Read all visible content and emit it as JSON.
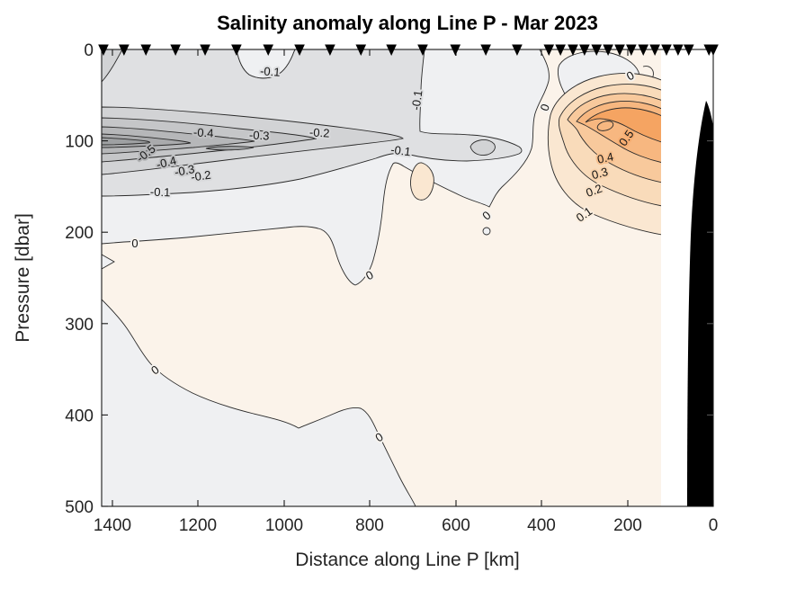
{
  "figure": {
    "title": "Salinity anomaly along Line P - Mar 2023",
    "background": "#ffffff"
  },
  "axes": {
    "x": {
      "label": "Distance along Line P [km]",
      "ticks": [
        "1400",
        "1200",
        "1000",
        "800",
        "600",
        "400",
        "200",
        "0"
      ],
      "direction": "reversed",
      "range_km": [
        1425,
        0
      ]
    },
    "y": {
      "label": "Pressure [dbar]",
      "ticks": [
        "0",
        "100",
        "200",
        "300",
        "400",
        "500"
      ],
      "direction": "increasing-downward",
      "range_dbar": [
        0,
        500
      ]
    }
  },
  "stations": {
    "marker": "filled-down-triangle-icon",
    "color": "#000000",
    "km": [
      1421,
      1373,
      1322,
      1253,
      1184,
      1111,
      1037,
      964,
      893,
      821,
      750,
      677,
      601,
      530,
      457,
      383,
      356,
      327,
      300,
      272,
      245,
      218,
      191,
      163,
      136,
      109,
      82,
      57,
      10,
      0
    ]
  },
  "contour_labels": [
    {
      "text": "-0.1",
      "km": 1033,
      "dbar": 25
    },
    {
      "text": "-0.1",
      "km": 681,
      "dbar": 56
    },
    {
      "text": "-0.1",
      "km": 729,
      "dbar": 111
    },
    {
      "text": "-0.4",
      "km": 1188,
      "dbar": 92
    },
    {
      "text": "-0.3",
      "km": 1058,
      "dbar": 94
    },
    {
      "text": "-0.2",
      "km": 918,
      "dbar": 92
    },
    {
      "text": "-0.5",
      "km": 1316,
      "dbar": 113
    },
    {
      "text": "-0.4",
      "km": 1272,
      "dbar": 124
    },
    {
      "text": "-0.3",
      "km": 1230,
      "dbar": 133
    },
    {
      "text": "-0.2",
      "km": 1197,
      "dbar": 139
    },
    {
      "text": "-0.1",
      "km": 1289,
      "dbar": 156
    },
    {
      "text": "0",
      "km": 1347,
      "dbar": 213
    },
    {
      "text": "0",
      "km": 796,
      "dbar": 247
    },
    {
      "text": "0",
      "km": 522,
      "dbar": 181
    },
    {
      "text": "0",
      "km": 1295,
      "dbar": 350
    },
    {
      "text": "0",
      "km": 773,
      "dbar": 424
    },
    {
      "text": "0",
      "km": 383,
      "dbar": 61
    },
    {
      "text": "0",
      "km": 189,
      "dbar": 29
    },
    {
      "text": "0.1",
      "km": 295,
      "dbar": 180
    },
    {
      "text": "0.2",
      "km": 274,
      "dbar": 155
    },
    {
      "text": "0.3",
      "km": 262,
      "dbar": 136
    },
    {
      "text": "0.4",
      "km": 249,
      "dbar": 119
    },
    {
      "text": "0.5",
      "km": 195,
      "dbar": 94
    }
  ],
  "colors": {
    "fill_below_-0.5": "#A9AAAC",
    "fill_-0.5_-0.4": "#B6B7B9",
    "fill_-0.4_-0.3": "#C5C6C8",
    "fill_-0.3_-0.2": "#D2D3D5",
    "fill_-0.2_-0.1": "#DFE0E2",
    "fill_-0.1_0": "#EFF0F2",
    "fill_0_0.1": "#FBF3EA",
    "fill_0.1_0.2": "#FAE7D1",
    "fill_0.2_0.3": "#F9DBBA",
    "fill_0.3_0.4": "#F8C99C",
    "fill_0.4_0.5": "#F7B780",
    "fill_above_0.5": "#F5A462",
    "contour_line": "#2b2b2b",
    "bathymetry": "#000000"
  },
  "chart_data": {
    "type": "contour",
    "title": "Salinity anomaly along Line P - Mar 2023",
    "xlabel": "Distance along Line P [km]",
    "ylabel": "Pressure [dbar]",
    "xlim": [
      1425,
      0
    ],
    "ylim": [
      0,
      500
    ],
    "contour_interval": 0.1,
    "labeled_levels": [
      -0.5,
      -0.4,
      -0.3,
      -0.2,
      -0.1,
      0,
      0.1,
      0.2,
      0.3,
      0.4,
      0.5
    ],
    "colormap": "gray (negative) to orange (positive) diverging about 0",
    "features": [
      {
        "name": "fresh (negative) anomaly core",
        "min_value": -0.55,
        "center_km": 1280,
        "center_dbar": 110,
        "extent_km": [
          950,
          1425
        ],
        "extent_dbar": [
          75,
          170
        ],
        "note": "elongated lens hugging the western/offshore end, nested contours -0.1 to -0.5"
      },
      {
        "name": "negative surface layer",
        "value": -0.1,
        "extent_km": [
          680,
          1425
        ],
        "extent_dbar": [
          0,
          215
        ],
        "note": "broad gray field in upper-left with lighter pocket (-0.1 to 0) at surface near 1040 km"
      },
      {
        "name": "salty (positive) anomaly core",
        "max_value": 0.55,
        "center_km": 245,
        "center_dbar": 95,
        "extent_km": [
          120,
          420
        ],
        "extent_dbar": [
          60,
          230
        ],
        "note": "nested orange contours 0.1 to 0.5 near the coast"
      },
      {
        "name": "zero contour",
        "note": "runs from surface near 400 km diagonally to left edge near 215 dbar with dip to ~260 dbar near 800 km; second branch from left edge ~275 dbar down to bottom near 690 km"
      },
      {
        "name": "weak positive interior",
        "value_range": [
          0,
          0.1
        ],
        "note": "cream field fills most of the section below 250 dbar"
      },
      {
        "name": "bathymetry / coast",
        "note": "solid black wedge from ~60 dbar down to 500 dbar within ~60 km of the coast; no data between ~60 and ~120 km below surface section edge"
      }
    ],
    "station_markers_km": [
      1421,
      1373,
      1322,
      1253,
      1184,
      1111,
      1037,
      964,
      893,
      821,
      750,
      677,
      601,
      530,
      457,
      383,
      356,
      327,
      300,
      272,
      245,
      218,
      191,
      163,
      136,
      109,
      82,
      57,
      10,
      0
    ]
  }
}
